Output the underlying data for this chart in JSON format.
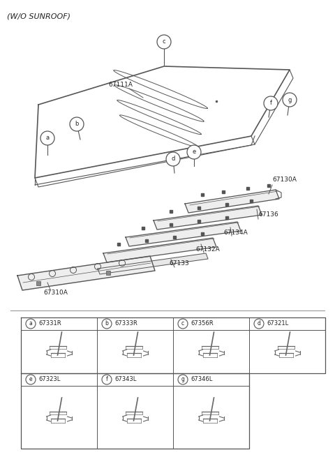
{
  "title": "(W/O SUNROOF)",
  "bg_color": "#ffffff",
  "line_color": "#555555",
  "text_color": "#222222",
  "grid_parts": [
    {
      "cell": [
        0,
        0
      ],
      "letter": "a",
      "code": "67331R"
    },
    {
      "cell": [
        0,
        1
      ],
      "letter": "b",
      "code": "67333R"
    },
    {
      "cell": [
        0,
        2
      ],
      "letter": "c",
      "code": "67356R"
    },
    {
      "cell": [
        0,
        3
      ],
      "letter": "d",
      "code": "67321L"
    },
    {
      "cell": [
        1,
        0
      ],
      "letter": "e",
      "code": "67323L"
    },
    {
      "cell": [
        1,
        1
      ],
      "letter": "f",
      "code": "67343L"
    },
    {
      "cell": [
        1,
        2
      ],
      "letter": "g",
      "code": "67346L"
    }
  ]
}
